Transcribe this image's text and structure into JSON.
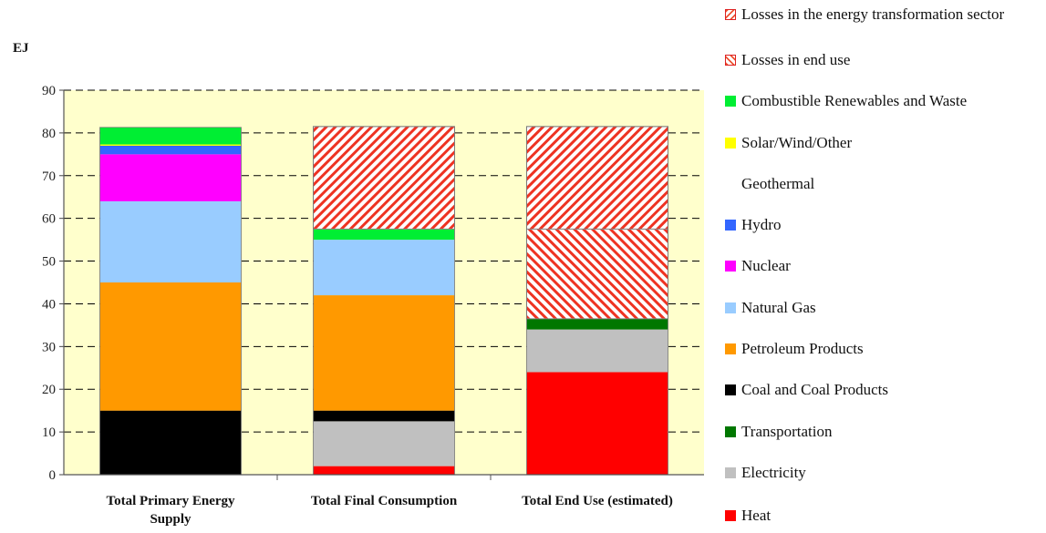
{
  "chart_data": {
    "type": "bar",
    "stacked": true,
    "unit_label": "EJ",
    "categories": [
      "Total Primary Energy Supply",
      "Total Final Consumption",
      "Total End Use (estimated)"
    ],
    "ylim": [
      0,
      90
    ],
    "yticks": [
      "0",
      "10",
      "20",
      "30",
      "40",
      "50",
      "60",
      "70",
      "80",
      "90"
    ],
    "grid": "horizontal dashed",
    "legend_position": "right",
    "series": [
      {
        "name": "Heat",
        "color": "#ff0000",
        "values": [
          0,
          2,
          24
        ]
      },
      {
        "name": "Electricity",
        "color": "#c0c0c0",
        "values": [
          0,
          10.5,
          10
        ]
      },
      {
        "name": "Transportation",
        "color": "#007700",
        "values": [
          0,
          0,
          2.5
        ]
      },
      {
        "name": "Coal and Coal Products",
        "color": "#000000",
        "values": [
          15,
          2.5,
          0
        ]
      },
      {
        "name": "Petroleum Products",
        "color": "#ff9900",
        "values": [
          30,
          27,
          0
        ]
      },
      {
        "name": "Natural Gas",
        "color": "#99ccff",
        "values": [
          19,
          13,
          0
        ]
      },
      {
        "name": "Nuclear",
        "color": "#ff00ff",
        "values": [
          11,
          0,
          0
        ]
      },
      {
        "name": "Hydro",
        "color": "#3366ff",
        "values": [
          2,
          0,
          0
        ]
      },
      {
        "name": "Geothermal",
        "color": "#ffffff",
        "values": [
          0,
          0,
          0
        ]
      },
      {
        "name": "Solar/Wind/Other",
        "color": "#ffff00",
        "values": [
          0.3,
          0,
          0
        ]
      },
      {
        "name": "Combustible Renewables and Waste",
        "color": "#00ee33",
        "values": [
          4,
          2.5,
          0
        ]
      },
      {
        "name": "Losses in end use",
        "color": "#ee3322",
        "pattern": "hatch-back",
        "values": [
          0,
          0,
          21
        ]
      },
      {
        "name": "Losses in the energy transformation sector",
        "color": "#ee3322",
        "pattern": "hatch-fwd",
        "values": [
          0,
          24,
          24
        ]
      }
    ],
    "legend_order": [
      "Losses in the energy transformation sector",
      "Losses in end use",
      "Combustible Renewables and Waste",
      "Solar/Wind/Other",
      "Geothermal",
      "Hydro",
      "Nuclear",
      "Natural Gas",
      "Petroleum Products",
      "Coal and Coal Products",
      "Transportation",
      "Electricity",
      "Heat"
    ]
  }
}
